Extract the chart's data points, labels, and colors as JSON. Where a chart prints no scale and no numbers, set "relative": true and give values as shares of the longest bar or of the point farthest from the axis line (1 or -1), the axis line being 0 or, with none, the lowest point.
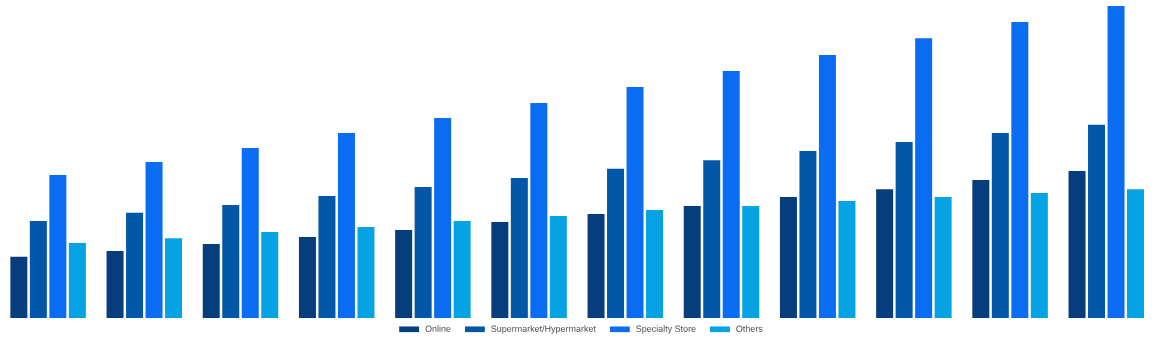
{
  "chart_data": {
    "type": "bar",
    "relative": true,
    "legend": "bottom",
    "categories": [
      null,
      null,
      null,
      null,
      null,
      null,
      null,
      null,
      null,
      null,
      null,
      null
    ],
    "series": [
      {
        "name": "Online",
        "color": "#063d7c",
        "values": [
          0.196,
          0.215,
          0.237,
          0.26,
          0.282,
          0.308,
          0.333,
          0.359,
          0.388,
          0.413,
          0.442,
          0.471
        ]
      },
      {
        "name": "Supermarket/Hypermarket",
        "color": "#0357a8",
        "values": [
          0.311,
          0.337,
          0.362,
          0.391,
          0.42,
          0.449,
          0.478,
          0.506,
          0.535,
          0.564,
          0.593,
          0.619
        ]
      },
      {
        "name": "Specialty Store",
        "color": "#0a6cf0",
        "values": [
          0.458,
          0.5,
          0.545,
          0.593,
          0.641,
          0.689,
          0.74,
          0.792,
          0.843,
          0.897,
          0.949,
          1
        ]
      },
      {
        "name": "Others",
        "color": "#05a3e3",
        "values": [
          0.24,
          0.256,
          0.276,
          0.292,
          0.311,
          0.327,
          0.346,
          0.359,
          0.375,
          0.388,
          0.401,
          0.413
        ]
      }
    ]
  }
}
